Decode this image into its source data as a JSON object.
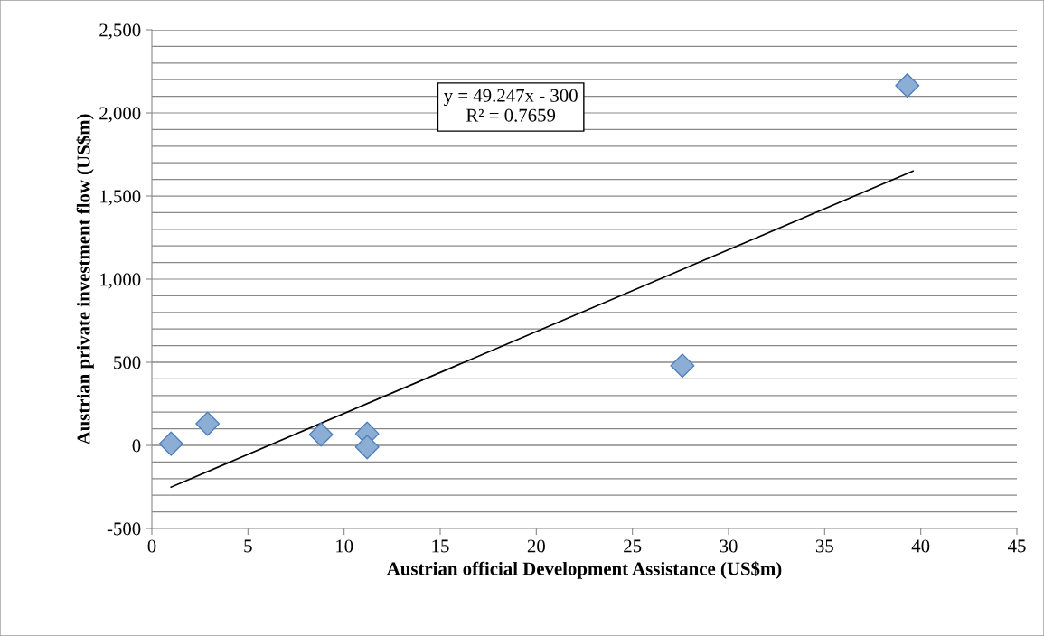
{
  "chart_data": {
    "type": "scatter",
    "xlabel": "Austrian official Development Assistance (US$m)",
    "ylabel": "Austrian private investment flow (US$m)",
    "marker": "diamond",
    "grid": "y",
    "legend": false,
    "xlim": [
      0,
      45
    ],
    "xticks": [
      0,
      5,
      10,
      15,
      20,
      25,
      30,
      35,
      40,
      45
    ],
    "ylim": [
      -500,
      2500
    ],
    "yticks": [
      -500,
      {
        "value": -400,
        "label": null
      },
      {
        "value": -300,
        "label": null
      },
      {
        "value": -200,
        "label": null
      },
      {
        "value": -100,
        "label": null
      },
      0,
      {
        "value": 100,
        "label": null
      },
      {
        "value": 200,
        "label": null
      },
      {
        "value": 300,
        "label": null
      },
      {
        "value": 400,
        "label": null
      },
      500,
      {
        "value": 600,
        "label": null
      },
      {
        "value": 700,
        "label": null
      },
      {
        "value": 800,
        "label": null
      },
      {
        "value": 900,
        "label": null
      },
      {
        "value": 1000,
        "label": "1,000"
      },
      {
        "value": 1100,
        "label": null
      },
      {
        "value": 1200,
        "label": null
      },
      {
        "value": 1300,
        "label": null
      },
      {
        "value": 1400,
        "label": null
      },
      {
        "value": 1500,
        "label": "1,500"
      },
      {
        "value": 1600,
        "label": null
      },
      {
        "value": 1700,
        "label": null
      },
      {
        "value": 1800,
        "label": null
      },
      {
        "value": 1900,
        "label": null
      },
      {
        "value": 2000,
        "label": "2,000"
      },
      {
        "value": 2100,
        "label": null
      },
      {
        "value": 2200,
        "label": null
      },
      {
        "value": 2300,
        "label": null
      },
      {
        "value": 2400,
        "label": null
      },
      {
        "value": 2500,
        "label": "2,500"
      }
    ],
    "series": [
      {
        "color": "#4f81bd",
        "x": [
          1.0,
          2.9,
          8.8,
          11.2,
          11.2,
          27.6,
          39.3
        ],
        "values": [
          10,
          130,
          65,
          70,
          -10,
          480,
          2165
        ]
      },
      {
        "type": "line",
        "color": "#000000",
        "marker": "none",
        "x": [
          1.0,
          39.6
        ],
        "values": [
          -251,
          1650
        ]
      }
    ],
    "annotations": [
      "y = 49.247x - 300\nR² = 0.7659"
    ]
  }
}
